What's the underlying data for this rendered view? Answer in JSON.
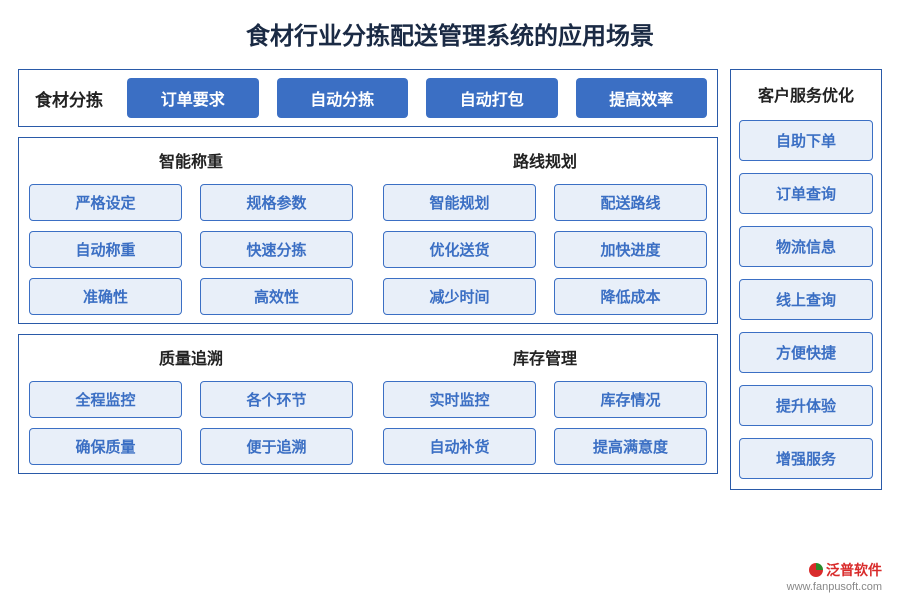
{
  "title": "食材行业分拣配送管理系统的应用场景",
  "colors": {
    "border": "#2a5aa8",
    "pill_bg": "#3b6fc4",
    "pill_text": "#ffffff",
    "cell_bg": "#e8eff9",
    "cell_border": "#3b6fc4",
    "cell_text": "#3b6fc4",
    "title_text": "#1a2a44",
    "subtitle_text": "#222222",
    "page_bg": "#ffffff"
  },
  "typography": {
    "title_size": 24,
    "subtitle_size": 16,
    "pill_size": 16,
    "cell_size": 15
  },
  "row1": {
    "label": "食材分拣",
    "items": [
      "订单要求",
      "自动分拣",
      "自动打包",
      "提高效率"
    ]
  },
  "block2": {
    "left": {
      "title": "智能称重",
      "items": [
        "严格设定",
        "规格参数",
        "自动称重",
        "快速分拣",
        "准确性",
        "高效性"
      ]
    },
    "right": {
      "title": "路线规划",
      "items": [
        "智能规划",
        "配送路线",
        "优化送货",
        "加快进度",
        "减少时间",
        "降低成本"
      ]
    }
  },
  "block3": {
    "left": {
      "title": "质量追溯",
      "items": [
        "全程监控",
        "各个环节",
        "确保质量",
        "便于追溯"
      ]
    },
    "right": {
      "title": "库存管理",
      "items": [
        "实时监控",
        "库存情况",
        "自动补货",
        "提高满意度"
      ]
    }
  },
  "sidebar": {
    "title": "客户服务优化",
    "items": [
      "自助下单",
      "订单查询",
      "物流信息",
      "线上查询",
      "方便快捷",
      "提升体验",
      "增强服务"
    ]
  },
  "footer": {
    "brand": "泛普软件",
    "url": "www.fanpusoft.com"
  }
}
